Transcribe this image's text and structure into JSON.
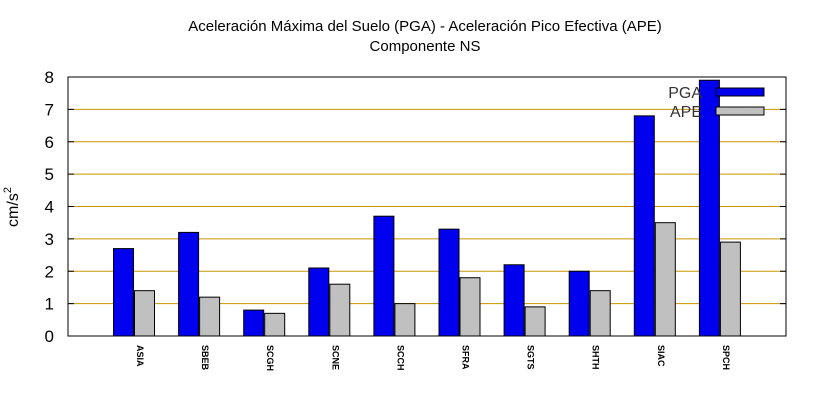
{
  "chart_data": {
    "type": "bar",
    "title_line1": "Aceleración Máxima del Suelo (PGA) -  Aceleración Pico Efectiva (APE)",
    "title_line2": "Componente NS",
    "ylabel": "cm/s",
    "ylabel_sup": "2",
    "xlabel": "",
    "ylim": [
      0,
      8
    ],
    "yticks": [
      0,
      1,
      2,
      3,
      4,
      5,
      6,
      7,
      8
    ],
    "grid": true,
    "legend_position": "top-right",
    "categories": [
      "ASIA",
      "SBEB",
      "SCGH",
      "SCNE",
      "SCCH",
      "SFRA",
      "SGTS",
      "SHTH",
      "SIAC",
      "SPCH"
    ],
    "series": [
      {
        "name": "PGA",
        "color": "#0000ee",
        "values": [
          2.7,
          3.2,
          0.8,
          2.1,
          3.7,
          3.3,
          2.2,
          2.0,
          6.8,
          7.9
        ]
      },
      {
        "name": "APE",
        "color": "#c0c0c0",
        "values": [
          1.4,
          1.2,
          0.7,
          1.6,
          1.0,
          1.8,
          0.9,
          1.4,
          3.5,
          2.9
        ]
      }
    ],
    "grid_color": "#c89600"
  }
}
